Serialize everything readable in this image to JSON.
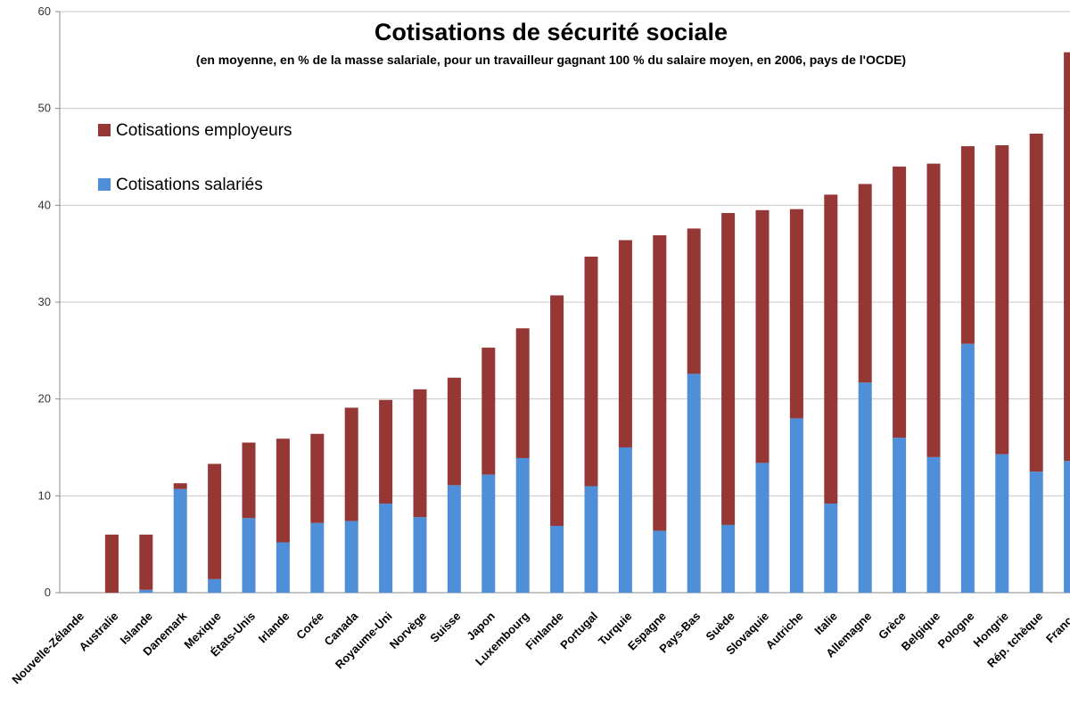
{
  "chart_data": {
    "type": "bar",
    "stacked": true,
    "title": "Cotisations de sécurité sociale",
    "subtitle": "(en moyenne, en % de la masse salariale, pour un travailleur gagnant 100 % du salaire moyen, en 2006, pays de l'OCDE)",
    "xlabel": "",
    "ylabel": "",
    "ylim": [
      0,
      60
    ],
    "yticks": [
      0,
      10,
      20,
      30,
      40,
      50,
      60
    ],
    "grid": true,
    "legend_position": "top-left",
    "categories": [
      "Nouvelle-Zélande",
      "Australie",
      "Islande",
      "Danemark",
      "Mexique",
      "États-Unis",
      "Irlande",
      "Corée",
      "Canada",
      "Royaume-Uni",
      "Norvège",
      "Suisse",
      "Japon",
      "Luxembourg",
      "Finlande",
      "Portugal",
      "Turquie",
      "Espagne",
      "Pays-Bas",
      "Suède",
      "Slovaquie",
      "Autriche",
      "Italie",
      "Allemagne",
      "Grèce",
      "Belgique",
      "Pologne",
      "Hongrie",
      "Rép. tchèque",
      "France"
    ],
    "series": [
      {
        "name": "Cotisations salariés",
        "color": "#4f8ed8",
        "values": [
          0,
          0,
          0.3,
          10.7,
          1.4,
          7.7,
          5.2,
          7.2,
          7.4,
          9.2,
          7.8,
          11.1,
          12.2,
          13.9,
          6.9,
          11.0,
          15.0,
          6.4,
          22.6,
          7.0,
          13.4,
          18.0,
          9.2,
          21.7,
          16.0,
          14.0,
          25.7,
          14.3,
          12.5,
          13.6
        ]
      },
      {
        "name": "Cotisations employeurs",
        "color": "#953735",
        "values": [
          0,
          6.0,
          5.7,
          0.6,
          11.9,
          7.8,
          10.7,
          9.2,
          11.7,
          10.7,
          13.2,
          11.1,
          13.1,
          13.4,
          23.8,
          23.7,
          21.4,
          30.5,
          15.0,
          32.2,
          26.1,
          21.6,
          31.9,
          20.5,
          28.0,
          30.3,
          20.4,
          31.9,
          34.9,
          42.2
        ]
      }
    ]
  },
  "legend": {
    "items": [
      {
        "label": "Cotisations employeurs",
        "color": "#953735"
      },
      {
        "label": "Cotisations salariés",
        "color": "#4f8ed8"
      }
    ]
  }
}
